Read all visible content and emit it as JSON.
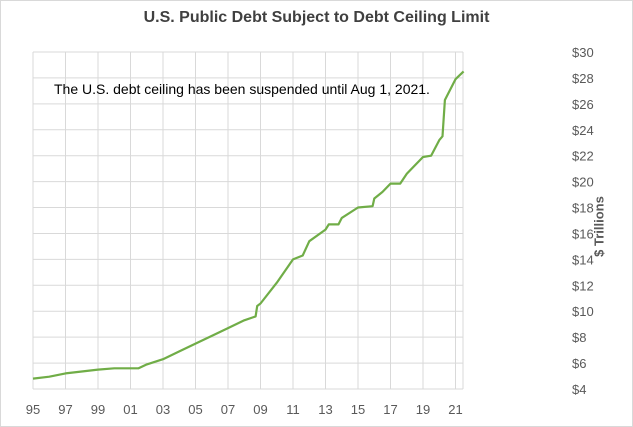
{
  "chart_data": {
    "type": "line",
    "title": "U.S. Public Debt Subject to Debt Ceiling Limit",
    "annotation": "The U.S. debt ceiling has been suspended until Aug 1, 2021.",
    "xlabel": "",
    "ylabel": "$ Trillions",
    "xlim": [
      1995,
      2021.5
    ],
    "ylim": [
      4,
      30
    ],
    "grid": true,
    "legend": "none",
    "line_color": "#70ad47",
    "x_tick_labels": [
      "95",
      "97",
      "99",
      "01",
      "03",
      "05",
      "07",
      "09",
      "11",
      "13",
      "15",
      "17",
      "19",
      "21"
    ],
    "x_tick_values": [
      1995,
      1997,
      1999,
      2001,
      2003,
      2005,
      2007,
      2009,
      2011,
      2013,
      2015,
      2017,
      2019,
      2021
    ],
    "y_tick_labels": [
      "$4",
      "$6",
      "$8",
      "$10",
      "$12",
      "$14",
      "$16",
      "$18",
      "$20",
      "$22",
      "$24",
      "$26",
      "$28",
      "$30"
    ],
    "y_tick_values": [
      4,
      6,
      8,
      10,
      12,
      14,
      16,
      18,
      20,
      22,
      24,
      26,
      28,
      30
    ],
    "series": [
      {
        "x": [
          1995,
          1996,
          1997,
          1998,
          1999,
          2000,
          2001,
          2001.5,
          2002,
          2003,
          2004,
          2005,
          2006,
          2007,
          2008,
          2008.7,
          2008.8,
          2009,
          2010,
          2011,
          2011.6,
          2012,
          2013,
          2013.2,
          2013.8,
          2014,
          2015,
          2015.9,
          2016,
          2016.5,
          2017,
          2017.6,
          2018,
          2018.3,
          2019,
          2019.5,
          2020,
          2020.2,
          2020.35,
          2021,
          2021.5
        ],
        "y": [
          4.8,
          4.95,
          5.2,
          5.35,
          5.5,
          5.6,
          5.6,
          5.6,
          5.9,
          6.3,
          6.9,
          7.5,
          8.1,
          8.7,
          9.3,
          9.6,
          10.4,
          10.6,
          12.2,
          14.0,
          14.3,
          15.4,
          16.3,
          16.7,
          16.7,
          17.2,
          18.0,
          18.1,
          18.7,
          19.2,
          19.85,
          19.85,
          20.6,
          21.0,
          21.9,
          22.0,
          23.2,
          23.5,
          26.3,
          27.9,
          28.5
        ]
      }
    ]
  }
}
